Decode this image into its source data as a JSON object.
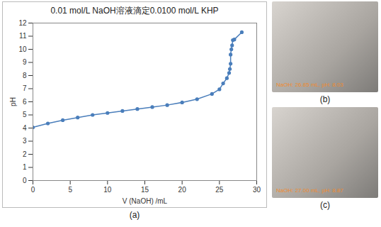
{
  "chart_data": {
    "type": "line",
    "title": "0.01 mol/L NaOH溶液滴定0.0100 mol/L KHP",
    "x_label": "V (NaOH) /mL",
    "y_label": "pH",
    "x": [
      0,
      2,
      4,
      6,
      8,
      10,
      12,
      14,
      16,
      18,
      20,
      22,
      24,
      25,
      25.5,
      26,
      26.3,
      26.4,
      26.5,
      26.5,
      26.6,
      26.7,
      26.8,
      27,
      28
    ],
    "series": [
      {
        "name": "pH",
        "color": "#4a7ebb",
        "marker": "circle",
        "line_style": "solid",
        "values": [
          4.05,
          4.35,
          4.6,
          4.8,
          5.0,
          5.15,
          5.3,
          5.45,
          5.6,
          5.75,
          5.95,
          6.2,
          6.6,
          6.95,
          7.4,
          7.8,
          8.2,
          8.5,
          8.9,
          9.6,
          10.0,
          10.3,
          10.7,
          10.75,
          11.3
        ]
      }
    ],
    "xlim": [
      0,
      30
    ],
    "xticks": [
      0,
      5,
      10,
      15,
      20,
      25,
      30
    ],
    "ylim": [
      0,
      12
    ],
    "yticks": [
      0,
      1,
      2,
      3,
      4,
      5,
      6,
      7,
      8,
      9,
      10,
      11,
      12
    ],
    "grid": false
  },
  "figure": {
    "panels": [
      {
        "label": "(a)"
      },
      {
        "label": "(b)",
        "caption": "NaOH: 26.85 mL, pH: 8.03"
      },
      {
        "label": "(c)",
        "caption": "NaOH: 27.00 mL, pH: 8.87"
      }
    ]
  }
}
